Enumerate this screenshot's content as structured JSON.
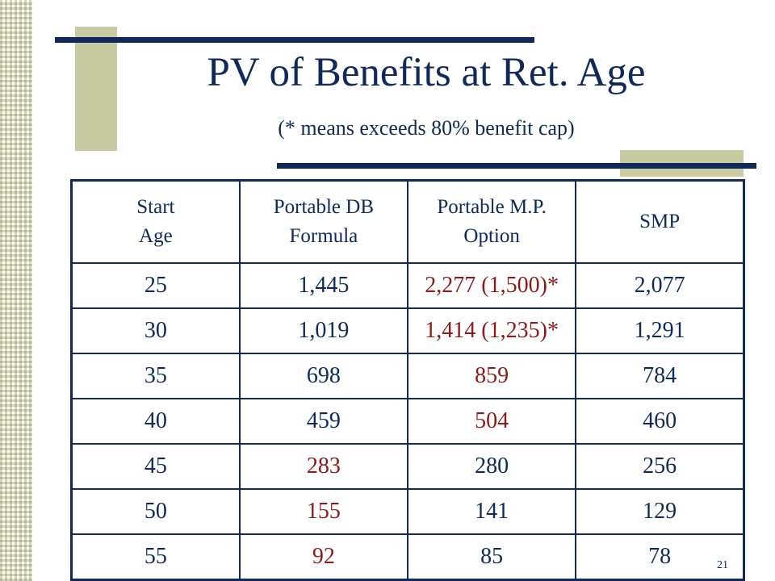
{
  "title": "PV of Benefits at Ret. Age",
  "subtitle": "(* means exceeds 80% benefit cap)",
  "table": {
    "headers": [
      {
        "line1": "Start",
        "line2": "Age"
      },
      {
        "line1": "Portable DB",
        "line2": "Formula"
      },
      {
        "line1": "Portable M.P.",
        "line2": "Option"
      },
      {
        "line1": "SMP",
        "line2": ""
      }
    ],
    "rows": [
      {
        "start_age": "25",
        "db": "1,445",
        "mp": "2,277 (1,500)*",
        "smp": "2,077"
      },
      {
        "start_age": "30",
        "db": "1,019",
        "mp": "1,414 (1,235)*",
        "smp": "1,291"
      },
      {
        "start_age": "35",
        "db": "698",
        "mp": "859",
        "smp": "784"
      },
      {
        "start_age": "40",
        "db": "459",
        "mp": "504",
        "smp": "460"
      },
      {
        "start_age": "45",
        "db": "283",
        "mp": "280",
        "smp": "256"
      },
      {
        "start_age": "50",
        "db": "155",
        "mp": "141",
        "smp": "129"
      },
      {
        "start_age": "55",
        "db": "92",
        "mp": "85",
        "smp": "78"
      }
    ]
  },
  "page_number": "21",
  "colors": {
    "text": "#0f2a5a",
    "highlight": "#8b1a1a",
    "accent": "#c9cba3"
  }
}
